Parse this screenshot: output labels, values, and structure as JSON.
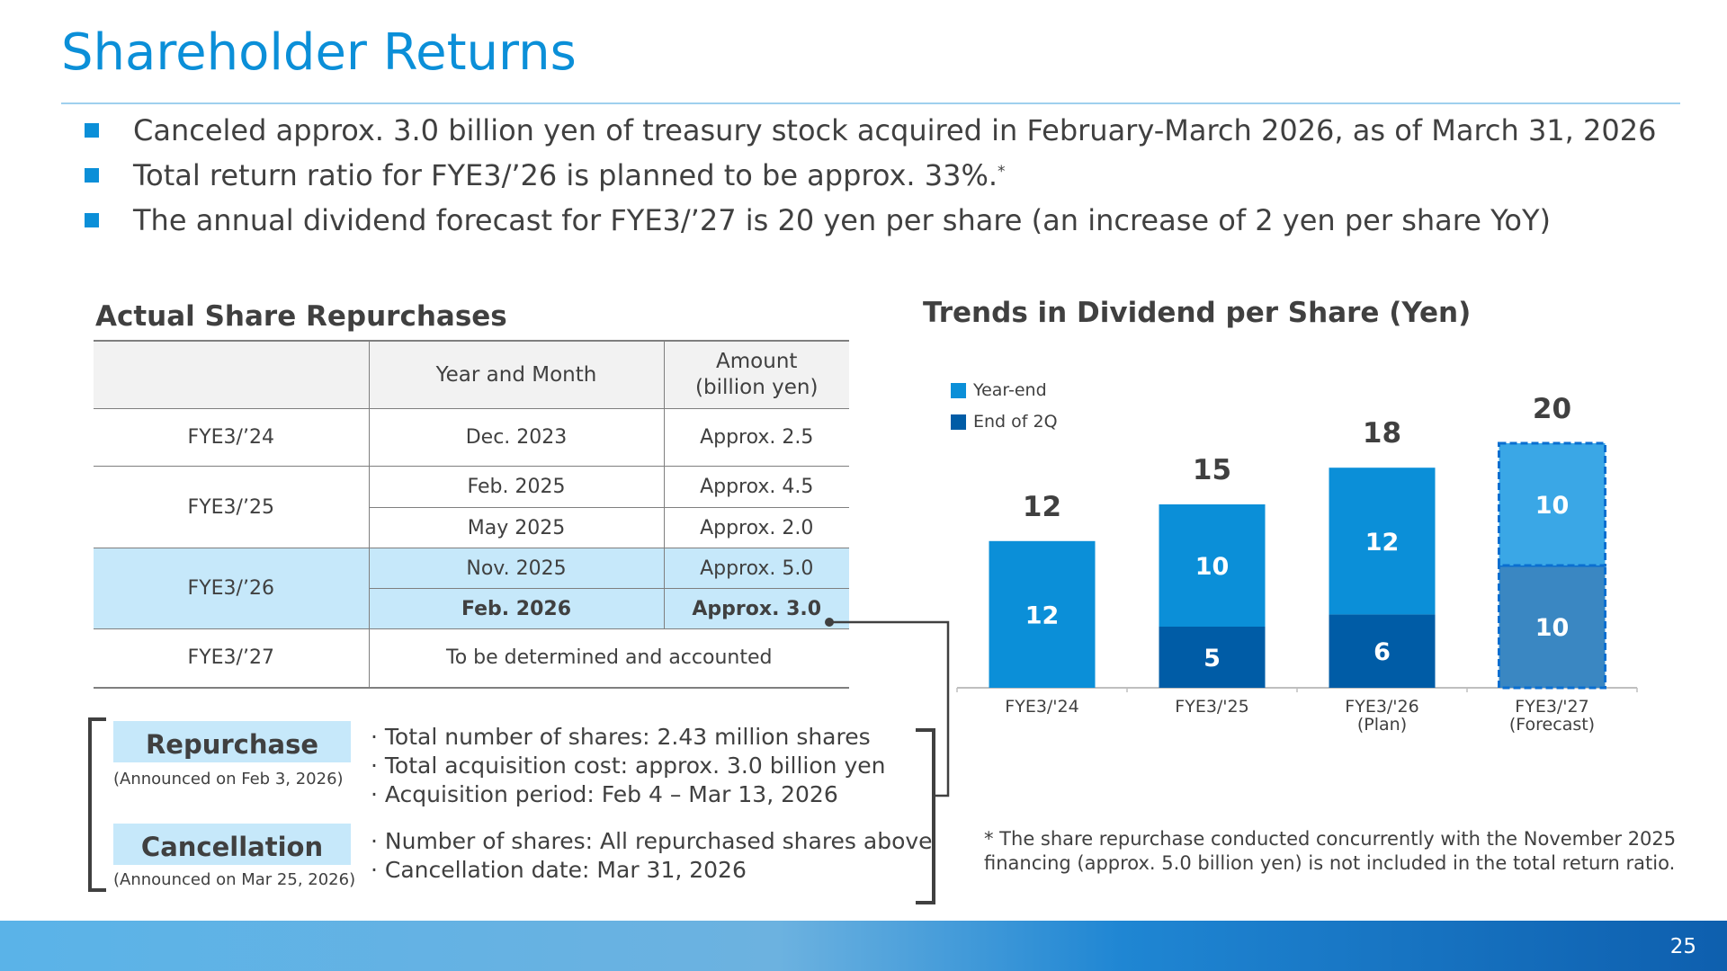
{
  "page": {
    "title": "Shareholder Returns",
    "bullets": [
      "Canceled approx. 3.0 billion yen of treasury stock acquired in February-March 2026, as of March 31, 2026",
      "Total return ratio for FYE3/’26 is planned to be approx. 33%.",
      "The annual dividend forecast for FYE3/’27 is 20 yen per share (an increase of 2 yen per share YoY)"
    ],
    "bullet2_sup": "*",
    "page_number": "25"
  },
  "repurchase_table": {
    "title": "Actual Share Repurchases",
    "headers": [
      "",
      "Year and Month",
      "Amount",
      "(billion yen)"
    ],
    "rows": [
      {
        "fy": "FYE3/’24",
        "month": "Dec. 2023",
        "amount": "Approx. 2.5"
      },
      {
        "fy": "FYE3/’25",
        "month": "Feb. 2025",
        "amount": "Approx. 4.5"
      },
      {
        "fy": "",
        "month": "May 2025",
        "amount": "Approx. 2.0"
      },
      {
        "fy": "FYE3/’26",
        "month": "Nov. 2025",
        "amount": "Approx. 5.0"
      },
      {
        "fy": "",
        "month": "Feb. 2026",
        "amount": "Approx. 3.0"
      },
      {
        "fy": "FYE3/’27",
        "month": "To be determined and accounted",
        "amount": ""
      }
    ],
    "highlight_color": "#c6e8fa"
  },
  "details": {
    "repurchase_label": "Repurchase",
    "repurchase_announced": "(Announced on Feb 3, 2026)",
    "repurchase_lines": [
      "· Total number of shares: 2.43 million shares",
      "· Total acquisition cost: approx. 3.0 billion yen",
      "· Acquisition period: Feb 4 – Mar 13, 2026"
    ],
    "cancellation_label": "Cancellation",
    "cancellation_announced": "(Announced on Mar 25, 2026)",
    "cancellation_lines": [
      "· Number of shares: All repurchased shares above",
      "· Cancellation date: Mar 31, 2026"
    ]
  },
  "footnote": "* The share repurchase conducted concurrently with the November 2025 financing (approx. 5.0 billion yen) is not included in the total return ratio.",
  "chart_data": {
    "type": "bar",
    "stacked": true,
    "title": "Trends in Dividend per Share (Yen)",
    "categories": [
      "FYE3/'24",
      "FYE3/'25",
      "FYE3/'26",
      "FYE3/'27"
    ],
    "category_sublabels": [
      "",
      "",
      "(Plan)",
      "(Forecast)"
    ],
    "series": [
      {
        "name": "End of 2Q",
        "values": [
          0,
          5,
          6,
          10
        ],
        "color": "#005ca6",
        "forecast_color": "#3a87c2"
      },
      {
        "name": "Year-end",
        "values": [
          12,
          10,
          12,
          10
        ],
        "color": "#0b8fd8",
        "forecast_color": "#3aa7e6"
      }
    ],
    "segment_labels": [
      [
        "",
        "5",
        "6",
        "10"
      ],
      [
        "12",
        "10",
        "12",
        "10"
      ]
    ],
    "totals": [
      "12",
      "15",
      "18",
      "20"
    ],
    "forecast_index": 3,
    "legend": [
      "Year-end",
      "End of 2Q"
    ],
    "legend_position": "top-left",
    "ylim": [
      0,
      20
    ],
    "grid": false
  },
  "colors": {
    "accent": "#0b8fd8",
    "text": "#404040"
  }
}
